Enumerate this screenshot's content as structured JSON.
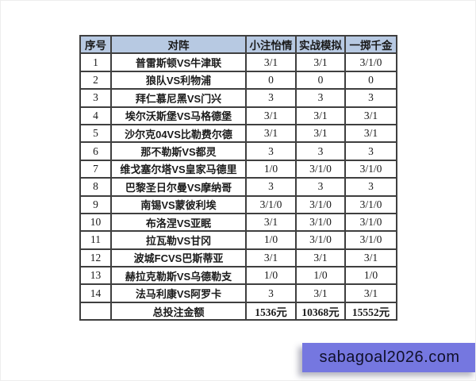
{
  "chart_data": {
    "type": "table",
    "title": "",
    "columns": [
      "序号",
      "对阵",
      "小注怡情",
      "实战模拟",
      "一掷千金"
    ],
    "rows": [
      [
        "1",
        "普雷斯顿VS牛津联",
        "3/1",
        "3/1",
        "3/1/0"
      ],
      [
        "2",
        "狼队VS利物浦",
        "0",
        "0",
        "0"
      ],
      [
        "3",
        "拜仁慕尼黑VS门兴",
        "3",
        "3",
        "3"
      ],
      [
        "4",
        "埃尔沃斯堡VS马格德堡",
        "3/1",
        "3/1",
        "3/1"
      ],
      [
        "5",
        "沙尔克04VS比勒费尔德",
        "3/1",
        "3/1",
        "3/1"
      ],
      [
        "6",
        "那不勒斯VS都灵",
        "3",
        "3",
        "3"
      ],
      [
        "7",
        "维戈塞尔塔VS皇家马德里",
        "1/0",
        "3/1/0",
        "3/1/0"
      ],
      [
        "8",
        "巴黎圣日尔曼VS摩纳哥",
        "3",
        "3",
        "3"
      ],
      [
        "9",
        "南锡VS蒙彼利埃",
        "3/1/0",
        "3/1/0",
        "3/1/0"
      ],
      [
        "10",
        "布洛涅VS亚眠",
        "3/1",
        "3/1/0",
        "3/1/0"
      ],
      [
        "11",
        "拉瓦勒VS甘冈",
        "1/0",
        "3/1/0",
        "3/1/0"
      ],
      [
        "12",
        "波城FCVS巴斯蒂亚",
        "3/1",
        "3/1",
        "3/1"
      ],
      [
        "13",
        "赫拉克勒斯VS乌德勒支",
        "1/0",
        "1/0",
        "1/0"
      ],
      [
        "14",
        "法马利康VS阿罗卡",
        "3",
        "3/1",
        "3/1"
      ]
    ],
    "total_row": [
      "",
      "总投注金额",
      "1536元",
      "10368元",
      "15552元"
    ],
    "layout": {
      "grid": true,
      "header_position": "top"
    }
  },
  "watermark": {
    "text": "sabagoal2026.com"
  },
  "colors": {
    "header_bg": "#b7c9e2",
    "border": "#3f3f3f",
    "text": "#1a1a1a",
    "watermark_bg": "#7577e0",
    "watermark_fg": "#10102a",
    "page_bg": "#ffffff"
  }
}
